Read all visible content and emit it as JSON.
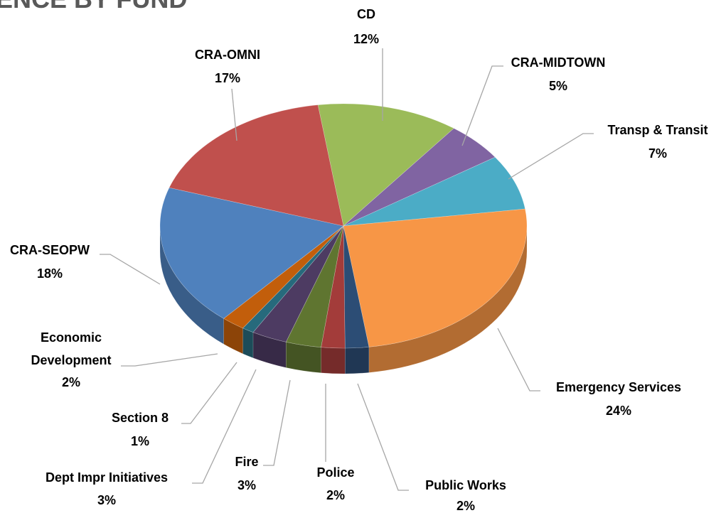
{
  "chart_data": {
    "type": "pie3d",
    "title": "ENCE BY FUND",
    "categories": [
      "CD",
      "CRA-MIDTOWN",
      "Transp & Transit",
      "Emergency Services",
      "Public Works",
      "Police",
      "Fire",
      "Dept Impr Initiatives",
      "Section 8",
      "Economic Development",
      "CRA-SEOPW",
      "CRA-OMNI"
    ],
    "values": [
      12,
      5,
      7,
      24,
      2,
      2,
      3,
      3,
      1,
      2,
      18,
      17
    ],
    "value_labels": [
      "12%",
      "5%",
      "7%",
      "24%",
      "2%",
      "2%",
      "3%",
      "3%",
      "1%",
      "2%",
      "18%",
      "17%"
    ],
    "colors": [
      "#9bbb59",
      "#8064a2",
      "#4bacc6",
      "#f79646",
      "#2c4d75",
      "#a33c3a",
      "#5f7530",
      "#4d3b62",
      "#276a7c",
      "#c25e0b",
      "#4f81bd",
      "#c0504d"
    ]
  }
}
